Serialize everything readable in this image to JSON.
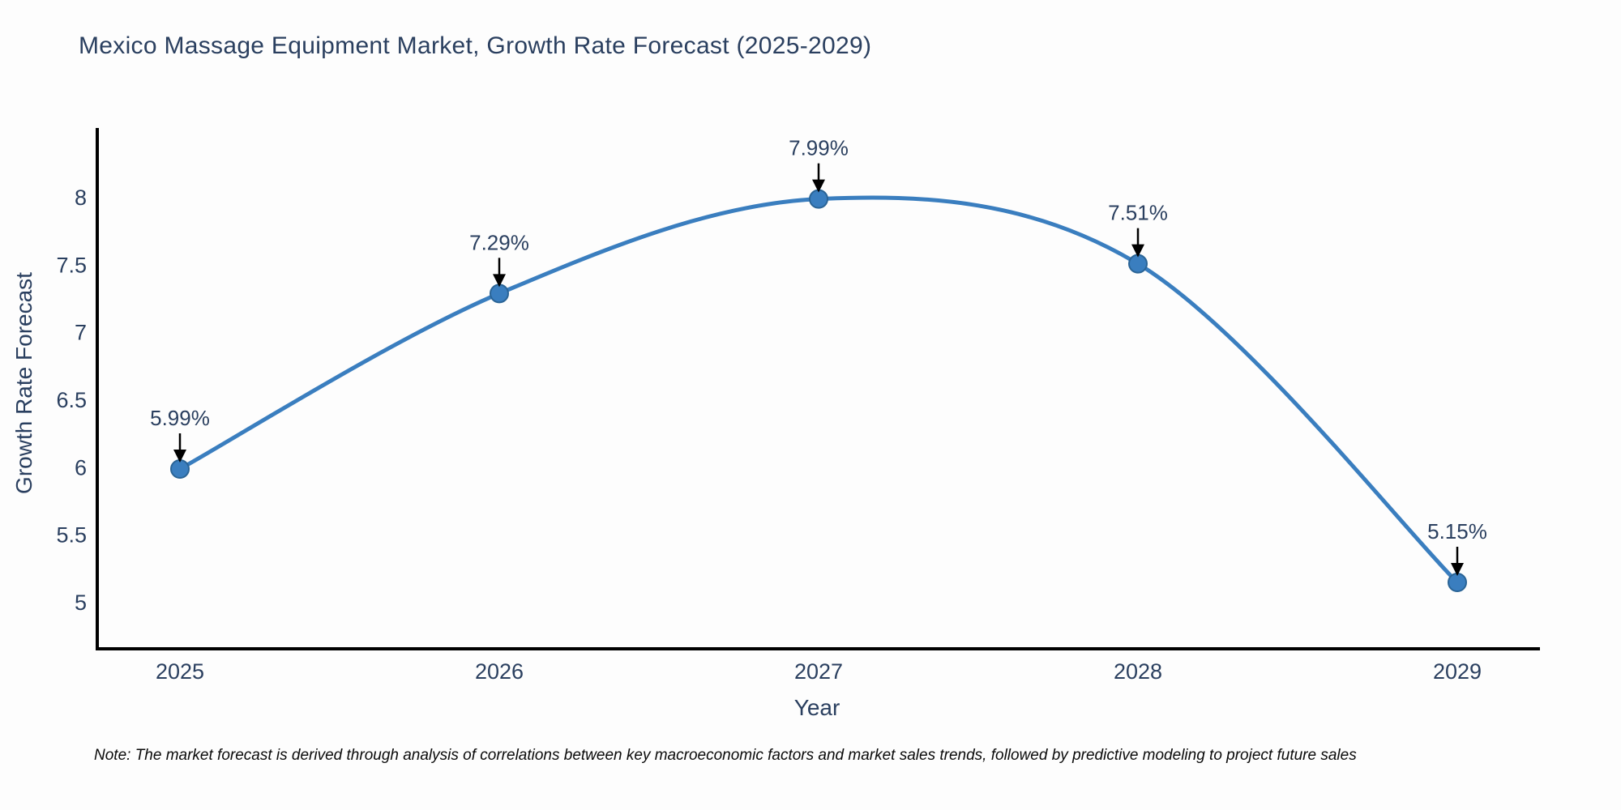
{
  "title": "Mexico Massage Equipment Market, Growth Rate Forecast (2025-2029)",
  "note": "Note: The market forecast is derived through analysis of correlations between key macroeconomic factors and market sales trends, followed by predictive modeling to project future sales",
  "chart_data": {
    "type": "line",
    "title": "Mexico Massage Equipment Market, Growth Rate Forecast (2025-2029)",
    "x": [
      2025,
      2026,
      2027,
      2028,
      2029
    ],
    "series": [
      {
        "name": "Growth Rate Forecast",
        "values": [
          5.99,
          7.29,
          7.99,
          7.51,
          5.15
        ]
      }
    ],
    "point_labels": [
      "5.99%",
      "7.29%",
      "7.99%",
      "7.51%",
      "5.15%"
    ],
    "xlabel": "Year",
    "ylabel": "Growth Rate Forecast",
    "yticks": [
      5,
      5.5,
      6,
      6.5,
      7,
      7.5,
      8
    ],
    "ylim": [
      4.66,
      8.52
    ],
    "xlim": [
      2024.74,
      2029.26
    ],
    "grid": false,
    "legend": false,
    "line_shape": "spline",
    "colors": {
      "line": "#3a7ebf",
      "marker": "#3a7ebf",
      "marker_edge": "#2a6496",
      "axis": "#000000",
      "text": "#2a3f5f",
      "annotation_arrow": "#000000",
      "background": "#fdfdfd"
    }
  }
}
